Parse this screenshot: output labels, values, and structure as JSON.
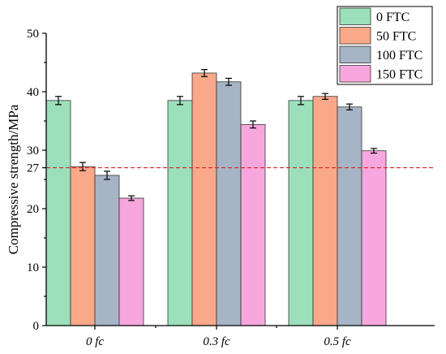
{
  "chart_data": {
    "type": "bar",
    "title": "",
    "xlabel": "",
    "ylabel": "Compressive strength/MPa",
    "ylim": [
      0,
      50
    ],
    "yticks": [
      0,
      10,
      20,
      30,
      40,
      50
    ],
    "extra_ytick": "27",
    "reference_line": {
      "value": 27,
      "color": "#d62728",
      "style": "dashed"
    },
    "categories": [
      "0 fc",
      "0.3 fc",
      "0.5 fc"
    ],
    "legend_position": "top-right",
    "series": [
      {
        "name": "0 FTC",
        "color": "#9cdfbb",
        "values": [
          38.5,
          38.5,
          38.5
        ],
        "errors": [
          0.7,
          0.7,
          0.7
        ]
      },
      {
        "name": "50 FTC",
        "color": "#f9a88a",
        "values": [
          27.2,
          43.2,
          39.2
        ],
        "errors": [
          0.7,
          0.6,
          0.5
        ]
      },
      {
        "name": "100 FTC",
        "color": "#a7b4c5",
        "values": [
          25.7,
          41.7,
          37.4
        ],
        "errors": [
          0.7,
          0.6,
          0.5
        ]
      },
      {
        "name": "150 FTC",
        "color": "#f7a7dd",
        "values": [
          21.8,
          34.4,
          29.9
        ],
        "errors": [
          0.4,
          0.6,
          0.4
        ]
      }
    ],
    "grid": false
  }
}
